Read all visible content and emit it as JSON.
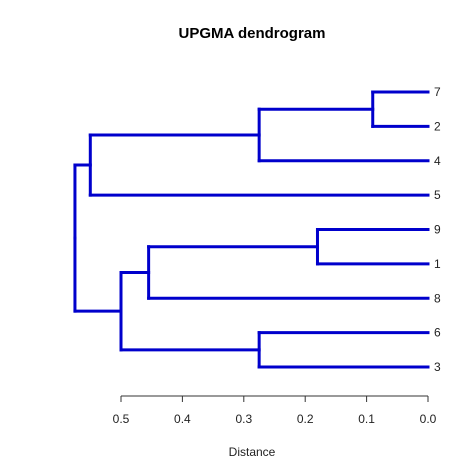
{
  "chart_data": {
    "type": "dendrogram",
    "title": "UPGMA dendrogram",
    "xlabel": "Distance",
    "orientation": "leaves-right",
    "xlim": [
      0.5,
      0.0
    ],
    "ticks": [
      "0.5",
      "0.4",
      "0.3",
      "0.2",
      "0.1",
      "0.0"
    ],
    "tick_values": [
      0.5,
      0.4,
      0.3,
      0.2,
      0.1,
      0.0
    ],
    "leaves": [
      "7",
      "2",
      "4",
      "5",
      "9",
      "1",
      "8",
      "6",
      "3"
    ],
    "merges": [
      {
        "id": "A",
        "children": [
          "7",
          "2"
        ],
        "height": 0.09
      },
      {
        "id": "B",
        "children": [
          "A",
          "4"
        ],
        "height": 0.275
      },
      {
        "id": "C",
        "children": [
          "B",
          "5"
        ],
        "height": 0.55
      },
      {
        "id": "D",
        "children": [
          "9",
          "1"
        ],
        "height": 0.18
      },
      {
        "id": "E",
        "children": [
          "D",
          "8"
        ],
        "height": 0.455
      },
      {
        "id": "F",
        "children": [
          "6",
          "3"
        ],
        "height": 0.275
      },
      {
        "id": "G",
        "children": [
          "E",
          "F"
        ],
        "height": 0.5
      },
      {
        "id": "H",
        "children": [
          "C",
          "G"
        ],
        "height": 0.575
      }
    ],
    "colors": {
      "branch": "#0000cc",
      "axis": "#333333"
    },
    "grid": false
  }
}
